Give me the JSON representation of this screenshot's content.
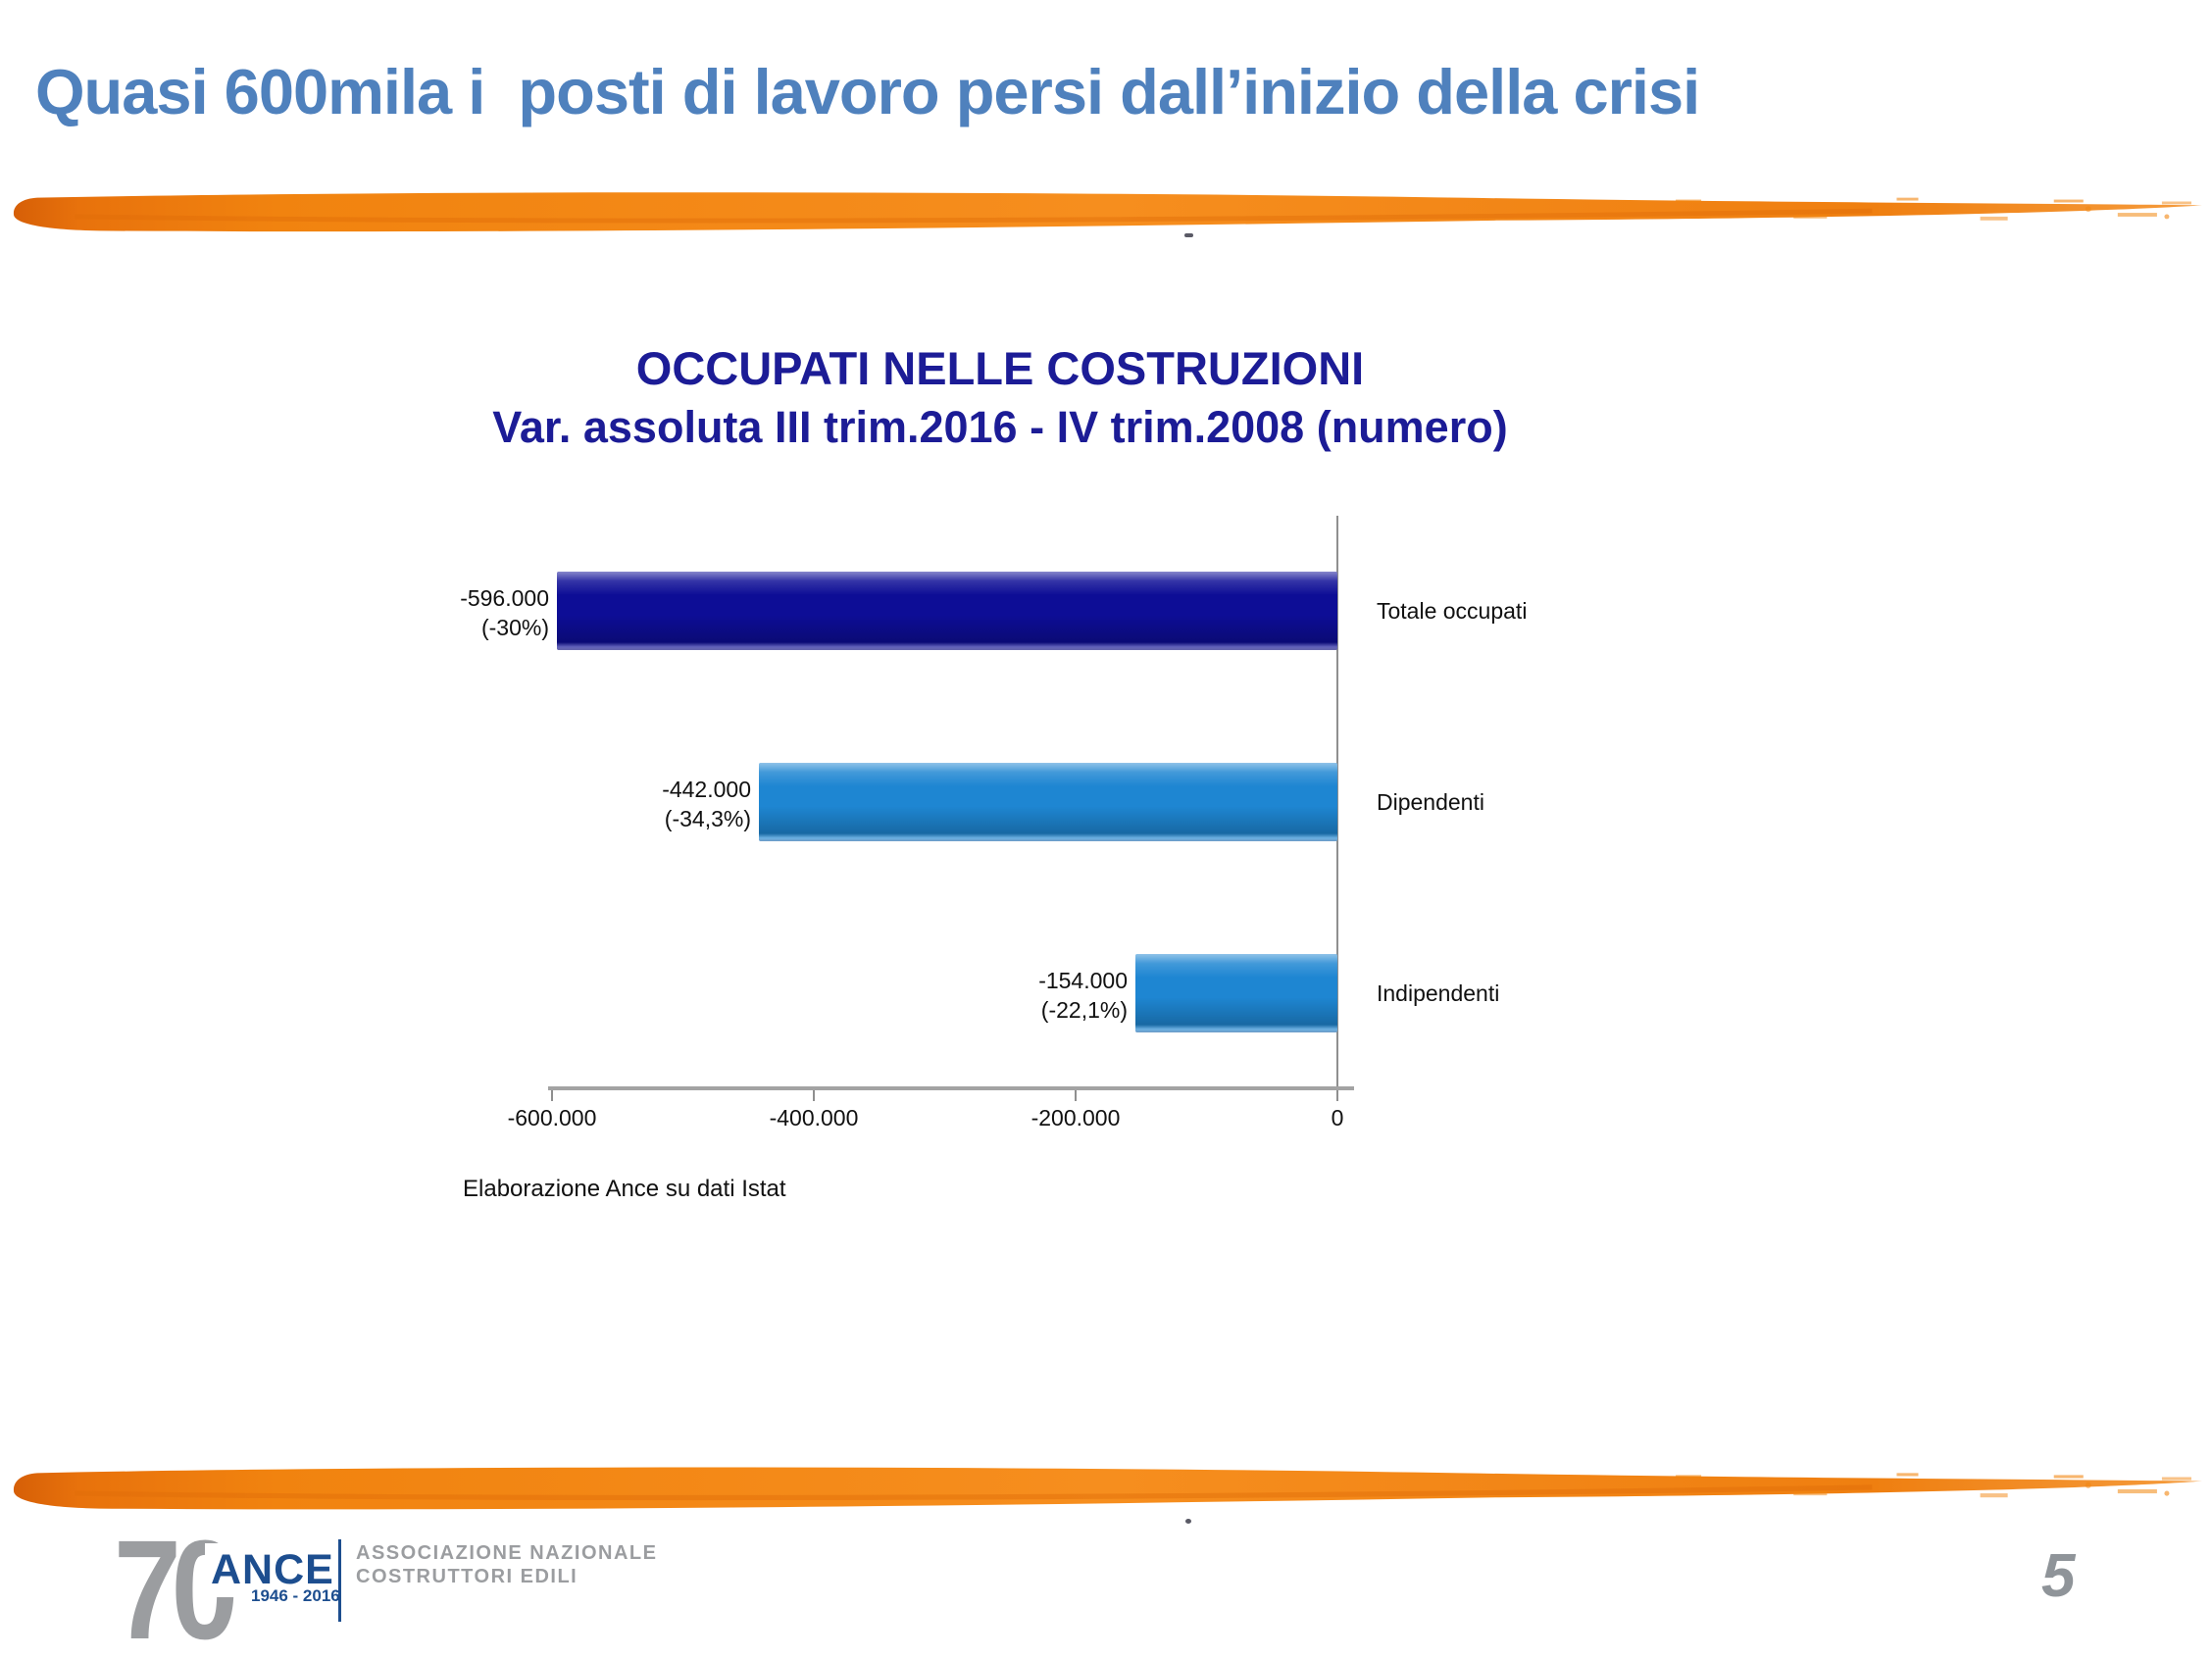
{
  "slide": {
    "title": "Quasi 600mila i  posti di lavoro persi dall’inizio della crisi",
    "page_number": "5"
  },
  "chart": {
    "title_line1": "OCCUPATI NELLE COSTRUZIONI",
    "title_line2": "Var. assoluta III trim.2016 - IV trim.2008 (numero)",
    "source": "Elaborazione Ance su dati Istat"
  },
  "chart_data": {
    "type": "bar",
    "orientation": "horizontal",
    "title": "OCCUPATI NELLE COSTRUZIONI",
    "subtitle": "Var. assoluta III trim.2016 - IV trim.2008 (numero)",
    "categories": [
      "Totale occupati",
      "Dipendenti",
      "Indipendenti"
    ],
    "values": [
      -596000,
      -442000,
      -154000
    ],
    "percents": [
      -30,
      -34.3,
      -22.1
    ],
    "value_labels": [
      [
        "-596.000",
        "(-30%)"
      ],
      [
        "-442.000",
        "(-34,3%)"
      ],
      [
        "-154.000",
        "(-22,1%)"
      ]
    ],
    "xlim": [
      -600000,
      0
    ],
    "x_ticks": [
      {
        "value": -600000,
        "label": "-600.000"
      },
      {
        "value": -400000,
        "label": "-400.000"
      },
      {
        "value": -200000,
        "label": "-200.000"
      },
      {
        "value": 0,
        "label": "0"
      }
    ],
    "bar_colors": [
      "#0d0d96",
      "#1e86d2",
      "#1e86d2"
    ],
    "grid": false,
    "legend": false,
    "source": "Elaborazione Ance su dati Istat"
  },
  "logo": {
    "anniversary": "70",
    "name": "ANCE",
    "years": "1946 - 2016",
    "subtitle_line1": "ASSOCIAZIONE NAZIONALE",
    "subtitle_line2": "COSTRUTTORI EDILI"
  },
  "colors": {
    "title_blue": "#4f81bd",
    "chart_title_navy": "#1c1c96",
    "bar_navy": "#0d0d96",
    "bar_blue": "#1e86d2",
    "brush_orange": "#f2830f",
    "logo_blue": "#1d4e8f",
    "logo_gray": "#9b9da0",
    "page_number_gray": "#8f9499"
  }
}
